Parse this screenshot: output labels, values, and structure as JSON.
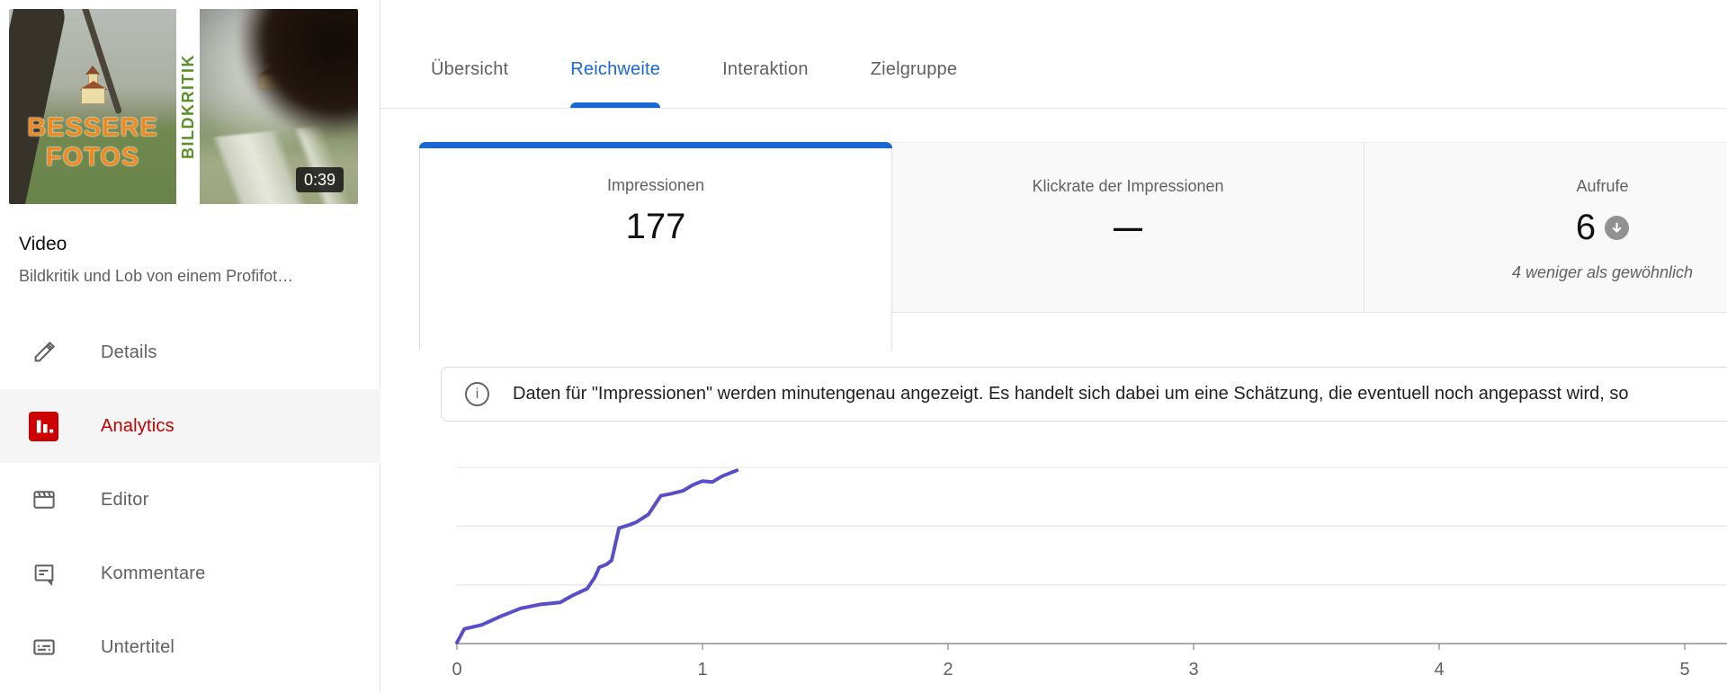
{
  "sidebar": {
    "video_label": "Video",
    "video_title": "Bildkritik und Lob von einem Profifot…",
    "thumbnail": {
      "overlay_line1": "BESSERE",
      "overlay_line2": "FOTOS",
      "vertical_text": "BILDKRITIK",
      "duration": "0:39"
    },
    "items": [
      {
        "label": "Details",
        "icon": "pencil-icon",
        "active": false
      },
      {
        "label": "Analytics",
        "icon": "bar-chart-icon",
        "active": true
      },
      {
        "label": "Editor",
        "icon": "clapperboard-icon",
        "active": false
      },
      {
        "label": "Kommentare",
        "icon": "comment-icon",
        "active": false
      },
      {
        "label": "Untertitel",
        "icon": "captions-icon",
        "active": false
      }
    ]
  },
  "tabs": [
    {
      "label": "Übersicht",
      "active": false
    },
    {
      "label": "Reichweite",
      "active": true
    },
    {
      "label": "Interaktion",
      "active": false
    },
    {
      "label": "Zielgruppe",
      "active": false
    }
  ],
  "metric_cards": [
    {
      "label": "Impressionen",
      "value": "177",
      "selected": true
    },
    {
      "label": "Klickrate der Impressionen",
      "value": "—",
      "selected": false
    },
    {
      "label": "Aufrufe",
      "value": "6",
      "badge_icon": "down-arrow-circle-icon",
      "subtext": "4 weniger als gewöhnlich",
      "selected": false
    }
  ],
  "info_banner": {
    "icon": "info-icon",
    "text": "Daten für \"Impressionen\" werden minutengenau angezeigt. Es handelt sich dabei um eine Schätzung, die eventuell noch angepasst wird, so"
  },
  "colors": {
    "accent_blue": "#1967d2",
    "brand_red": "#cc0000",
    "line_purple": "#584fc8",
    "secondary_text": "#606060"
  },
  "chart_data": {
    "type": "line",
    "x_ticks": [
      0,
      1,
      2,
      3,
      4,
      5
    ],
    "x_range": [
      0,
      5.17
    ],
    "y_range": [
      0,
      180
    ],
    "y_gridlines": [
      60,
      120,
      180
    ],
    "grid": true,
    "legend": "none",
    "series": [
      {
        "name": "Impressionen",
        "color": "#584fc8",
        "points": [
          [
            0,
            1
          ],
          [
            0.03,
            15
          ],
          [
            0.1,
            19
          ],
          [
            0.18,
            28
          ],
          [
            0.26,
            36
          ],
          [
            0.34,
            40
          ],
          [
            0.42,
            42
          ],
          [
            0.47,
            49
          ],
          [
            0.53,
            56
          ],
          [
            0.56,
            67
          ],
          [
            0.58,
            78
          ],
          [
            0.61,
            81
          ],
          [
            0.63,
            85
          ],
          [
            0.66,
            118
          ],
          [
            0.7,
            121
          ],
          [
            0.73,
            124
          ],
          [
            0.78,
            132
          ],
          [
            0.83,
            151
          ],
          [
            0.87,
            153
          ],
          [
            0.92,
            156
          ],
          [
            0.96,
            162
          ],
          [
            1.0,
            166
          ],
          [
            1.04,
            165
          ],
          [
            1.08,
            171
          ],
          [
            1.14,
            177
          ]
        ]
      }
    ]
  }
}
